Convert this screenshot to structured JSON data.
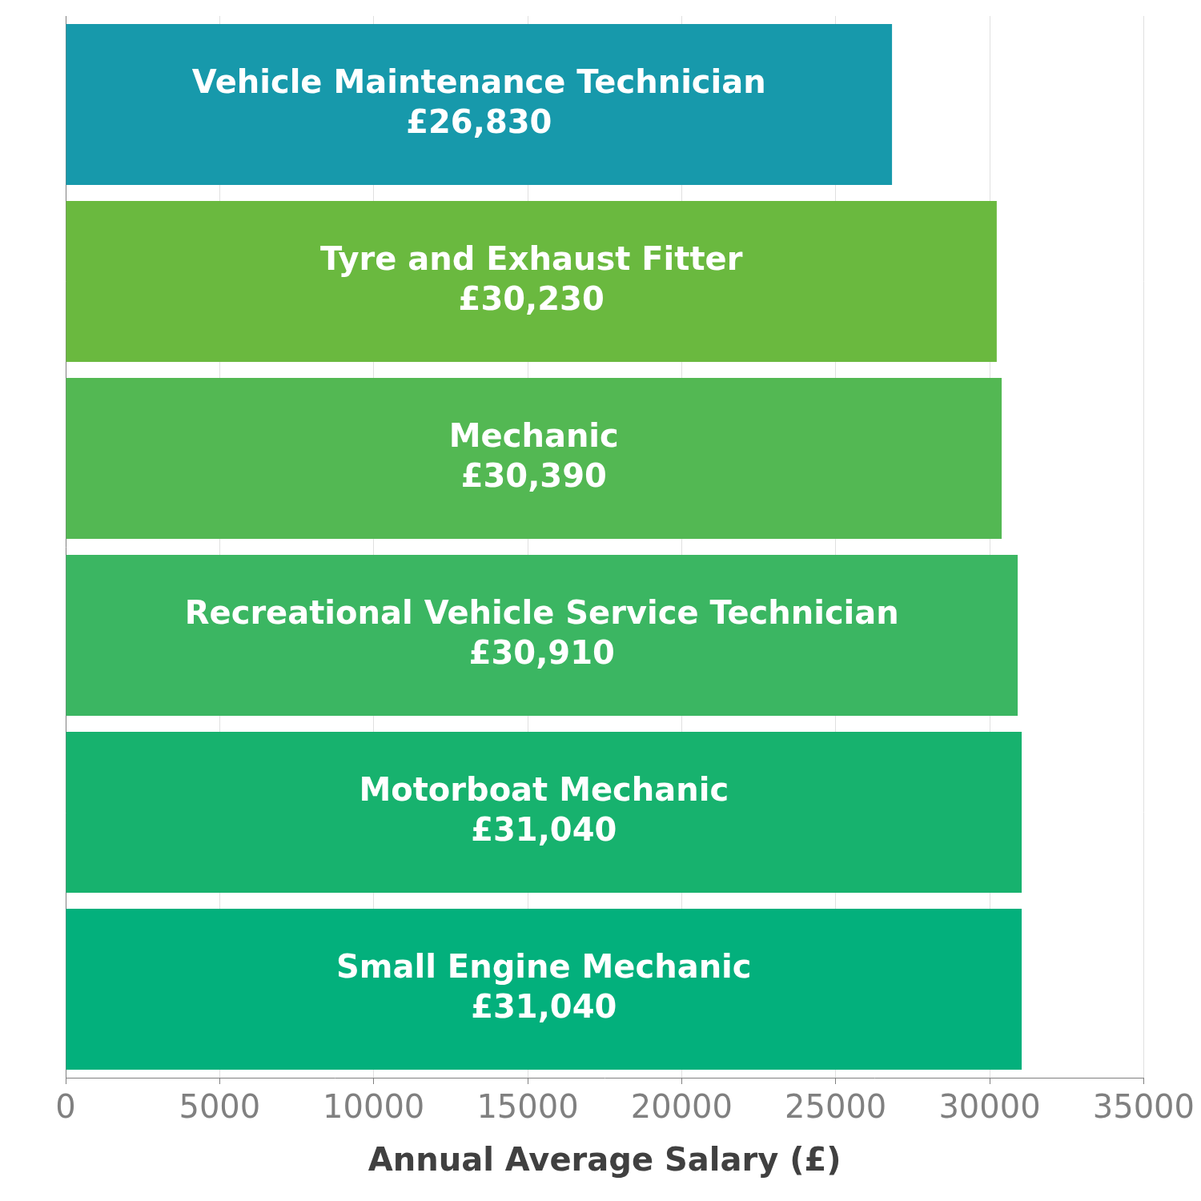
{
  "chart_data": {
    "type": "bar",
    "orientation": "horizontal",
    "x_label": "Annual Average Salary (£)",
    "categories": [
      "Vehicle Maintenance Technician",
      "Tyre and Exhaust Fitter",
      "Mechanic",
      "Recreational Vehicle Service Technician",
      "Motorboat Mechanic",
      "Small Engine Mechanic"
    ],
    "values": [
      26830,
      30230,
      30390,
      30910,
      31040,
      31040
    ],
    "value_labels": [
      "£26,830",
      "£30,230",
      "£30,390",
      "£30,910",
      "£31,040",
      "£31,040"
    ],
    "colors": [
      "#1799ab",
      "#6ab93f",
      "#53b853",
      "#3bb662",
      "#17b26e",
      "#03b07c"
    ],
    "xlim": [
      0,
      35000
    ],
    "xticks": [
      0,
      5000,
      10000,
      15000,
      20000,
      25000,
      30000,
      35000
    ],
    "grid": true,
    "data_labels": true,
    "tick_labels": "x"
  }
}
